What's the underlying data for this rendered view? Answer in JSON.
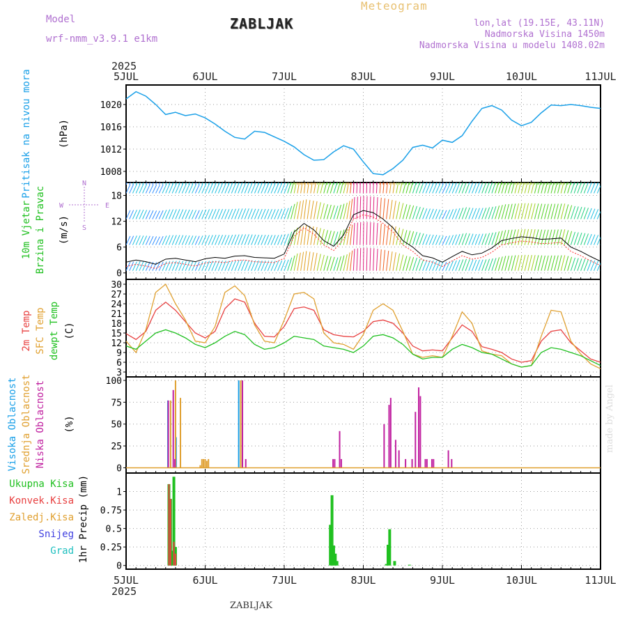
{
  "header": {
    "model_label": "Model",
    "model_name": "wrf-nmm_v3.9.1 e1km",
    "station": "ZABLJAK",
    "product": "Meteogram",
    "location": "lon,lat (19.15E, 43.11N)",
    "elevation": "Nadmorska Visina 1450m",
    "model_elevation": "Nadmorska Visina u modelu 1408.02m"
  },
  "footer": {
    "station": "ZABLJAK",
    "credit": "made by Angel"
  },
  "time_axis": {
    "year": "2025",
    "labels": [
      "5JUL",
      "6JUL",
      "7JUL",
      "8JUL",
      "9JUL",
      "10JUL",
      "11JUL"
    ]
  },
  "chart_data": [
    {
      "type": "line",
      "id": "pressure",
      "ylabel": "Pritisak na nivou mora",
      "unit": "(hPa)",
      "yticks": [
        1008,
        1012,
        1016,
        1020
      ],
      "ylim": [
        1006,
        1023.5
      ],
      "colors": [
        "#1aa0e8"
      ],
      "series": [
        {
          "x": [
            0,
            3,
            6,
            9,
            12,
            15,
            18,
            21,
            24,
            27,
            30,
            33,
            36,
            39,
            42,
            45,
            48,
            51,
            54,
            57,
            60,
            63,
            66,
            69,
            72,
            75,
            78,
            81,
            84,
            87,
            90,
            93,
            96,
            99,
            102,
            105,
            108,
            111,
            114,
            117,
            120,
            123,
            126,
            129,
            132,
            135,
            138,
            141,
            144
          ],
          "values": [
            1021.0,
            1022.3,
            1021.5,
            1020.0,
            1018.2,
            1018.6,
            1018.0,
            1018.3,
            1017.6,
            1016.5,
            1015.2,
            1014.1,
            1013.8,
            1015.2,
            1015.0,
            1014.2,
            1013.4,
            1012.4,
            1011.0,
            1010.0,
            1010.1,
            1011.5,
            1012.6,
            1012.0,
            1009.7,
            1007.6,
            1007.4,
            1008.5,
            1010.0,
            1012.3,
            1012.7,
            1012.2,
            1013.6,
            1013.2,
            1014.4,
            1017.0,
            1019.3,
            1019.8,
            1019.0,
            1017.2,
            1016.2,
            1016.8,
            1018.5,
            1019.9,
            1019.8,
            1020.0,
            1019.8,
            1019.5,
            1019.3
          ]
        }
      ]
    },
    {
      "type": "line",
      "id": "wind",
      "ylabel": "10m Vjetar Brzina i Pravac",
      "unit": "(m/s)",
      "compass": {
        "north": "N",
        "west": "W",
        "east": "E",
        "south": "S"
      },
      "yticks": [
        0,
        6,
        12,
        18
      ],
      "ylim": [
        -1.5,
        21
      ],
      "colors": [
        "#000000",
        "#ff3030"
      ],
      "series": [
        {
          "name": "speed",
          "x": [
            0,
            3,
            6,
            9,
            12,
            15,
            18,
            21,
            24,
            27,
            30,
            33,
            36,
            39,
            42,
            45,
            48,
            51,
            54,
            57,
            60,
            63,
            66,
            69,
            72,
            75,
            78,
            81,
            84,
            87,
            90,
            93,
            96,
            99,
            102,
            105,
            108,
            111,
            114,
            117,
            120,
            123,
            126,
            129,
            132,
            135,
            138,
            141,
            144
          ],
          "values": [
            2.5,
            3.0,
            2.6,
            2.0,
            3.2,
            3.4,
            3.0,
            2.6,
            3.3,
            3.6,
            3.4,
            3.9,
            4.0,
            3.6,
            3.5,
            3.4,
            4.4,
            9.5,
            11.5,
            10.0,
            7.5,
            6.2,
            8.8,
            13.5,
            14.5,
            14.0,
            12.5,
            10.5,
            7.5,
            6.0,
            4.0,
            3.5,
            2.5,
            3.8,
            5.0,
            4.2,
            4.6,
            5.8,
            7.5,
            8.0,
            8.4,
            8.2,
            7.8,
            7.9,
            8.1,
            6.0,
            5.0,
            3.8,
            2.7
          ]
        }
      ],
      "rows": [
        0.5,
        6.5,
        12.5,
        18.5,
        20.5
      ]
    },
    {
      "type": "line",
      "id": "temperature",
      "ylabel": "2m Temp",
      "ylabel2": "SFC Temp",
      "ylabel3": "dewpt Temp",
      "unit": "(C)",
      "yticks": [
        3,
        6,
        9,
        12,
        15,
        18,
        21,
        24,
        27,
        30
      ],
      "ylim": [
        1.5,
        31.5
      ],
      "x": [
        0,
        3,
        6,
        9,
        12,
        15,
        18,
        21,
        24,
        27,
        30,
        33,
        36,
        39,
        42,
        45,
        48,
        51,
        54,
        57,
        60,
        63,
        66,
        69,
        72,
        75,
        78,
        81,
        84,
        87,
        90,
        93,
        96,
        99,
        102,
        105,
        108,
        111,
        114,
        117,
        120,
        123,
        126,
        129,
        132,
        135,
        138,
        141,
        144
      ],
      "series": [
        {
          "name": "2m",
          "color": "#e84040",
          "values": [
            14.8,
            13.0,
            15.5,
            22.0,
            24.5,
            22.0,
            18.5,
            15.0,
            13.5,
            15.5,
            22.5,
            25.5,
            24.5,
            18.0,
            14.0,
            13.8,
            17.0,
            22.5,
            23.0,
            22.0,
            16.0,
            14.5,
            14.0,
            13.8,
            15.5,
            18.5,
            19.0,
            18.0,
            15.0,
            11.0,
            9.5,
            9.8,
            9.5,
            13.5,
            17.5,
            15.5,
            10.8,
            10.0,
            9.0,
            7.0,
            6.0,
            6.5,
            12.5,
            15.5,
            16.0,
            12.0,
            9.5,
            7.0,
            6.0
          ]
        },
        {
          "name": "SFC",
          "color": "#e0a030",
          "values": [
            12.5,
            9.0,
            16.0,
            27.5,
            30.0,
            24.0,
            19.0,
            12.5,
            12.0,
            17.0,
            27.5,
            29.5,
            26.5,
            17.5,
            12.5,
            12.0,
            19.0,
            27.0,
            27.5,
            25.5,
            15.0,
            12.0,
            11.5,
            10.0,
            14.5,
            22.0,
            24.0,
            22.0,
            15.5,
            8.5,
            7.5,
            8.0,
            7.5,
            14.0,
            21.5,
            18.0,
            9.5,
            8.5,
            8.0,
            5.5,
            4.5,
            5.0,
            14.0,
            22.0,
            21.5,
            12.5,
            8.5,
            5.5,
            4.0
          ]
        },
        {
          "name": "dewpt",
          "color": "#20c020",
          "values": [
            11.0,
            10.0,
            12.5,
            15.0,
            16.0,
            15.0,
            13.5,
            11.5,
            10.5,
            12.0,
            14.0,
            15.5,
            14.5,
            11.5,
            10.0,
            10.5,
            12.0,
            14.0,
            13.5,
            13.0,
            11.0,
            10.5,
            10.0,
            9.0,
            11.0,
            14.0,
            14.5,
            13.5,
            11.5,
            8.5,
            7.0,
            7.5,
            7.5,
            10.0,
            11.5,
            10.5,
            9.0,
            8.5,
            7.0,
            5.5,
            4.5,
            5.0,
            9.0,
            10.5,
            10.0,
            9.0,
            8.0,
            6.5,
            5.0
          ]
        }
      ]
    },
    {
      "type": "bar",
      "id": "cloud",
      "ylabel": "Visoka Oblacnost",
      "ylabel2": "Srednja Oblacnost",
      "ylabel3": "Niska Oblacnost",
      "unit": "(%)",
      "yticks": [
        0,
        25,
        50,
        75,
        100
      ],
      "ylim": [
        -6,
        104
      ],
      "series": [
        {
          "name": "Visoka",
          "color": "#1aa0e8",
          "points": [
            [
              13.0,
              77
            ],
            [
              15.5,
              35
            ],
            [
              34.5,
              100
            ]
          ]
        },
        {
          "name": "Srednja",
          "color": "#e0a030",
          "points": [
            [
              13.5,
              77
            ],
            [
              15.0,
              100
            ],
            [
              16.5,
              80
            ],
            [
              22.5,
              3
            ],
            [
              23.0,
              10
            ],
            [
              23.5,
              10
            ],
            [
              24.0,
              10
            ],
            [
              24.5,
              8
            ],
            [
              25.0,
              10
            ],
            [
              34.8,
              100
            ]
          ]
        },
        {
          "name": "Niska",
          "color": "#c020a0",
          "points": [
            [
              12.5,
              77
            ],
            [
              14.0,
              89
            ],
            [
              14.5,
              10
            ],
            [
              35.0,
              100
            ],
            [
              36.0,
              10
            ],
            [
              62.5,
              10
            ],
            [
              63.0,
              10
            ],
            [
              64.5,
              42
            ],
            [
              65.0,
              10
            ],
            [
              78.0,
              50
            ],
            [
              79.5,
              72
            ],
            [
              80.0,
              80
            ],
            [
              81.5,
              32
            ],
            [
              82.5,
              20
            ],
            [
              84.5,
              10
            ],
            [
              86.5,
              10
            ],
            [
              87.5,
              64
            ],
            [
              88.5,
              92
            ],
            [
              89.0,
              82
            ],
            [
              90.5,
              10
            ],
            [
              91.0,
              10
            ],
            [
              92.5,
              10
            ],
            [
              93.0,
              10
            ],
            [
              97.5,
              20
            ],
            [
              98.5,
              10
            ]
          ]
        }
      ]
    },
    {
      "type": "bar",
      "id": "precip",
      "ylabel": "1hr Precip (mm)",
      "legend": [
        "Ukupna Kisa",
        "Konvek.Kisa",
        "Zaledj.Kisa",
        "Snijeg",
        "Grad"
      ],
      "legend_colors": [
        "#20c020",
        "#e84040",
        "#e0a030",
        "#4040e0",
        "#20c0c0"
      ],
      "yticks": [
        0,
        0.25,
        0.5,
        0.75,
        1
      ],
      "ylim": [
        -0.05,
        1.25
      ],
      "series": [
        {
          "name": "Ukupna Kisa",
          "color": "#20c020",
          "points": [
            [
              13.0,
              1.1
            ],
            [
              13.5,
              0.9
            ],
            [
              14.0,
              0.2
            ],
            [
              14.5,
              1.2
            ],
            [
              15.0,
              0.25
            ],
            [
              62.0,
              0.55
            ],
            [
              62.5,
              0.95
            ],
            [
              63.0,
              0.27
            ],
            [
              63.5,
              0.16
            ],
            [
              64.0,
              0.06
            ],
            [
              79.0,
              0.02
            ],
            [
              79.5,
              0.28
            ],
            [
              80.0,
              0.49
            ],
            [
              81.5,
              0.06
            ],
            [
              86.0,
              0.01
            ]
          ]
        },
        {
          "name": "Konvek.Kisa",
          "color": "#e84040",
          "points": [
            [
              13.0,
              1.1
            ],
            [
              13.5,
              0.9
            ],
            [
              14.5,
              0.32
            ],
            [
              15.0,
              0.16
            ]
          ]
        }
      ]
    }
  ]
}
